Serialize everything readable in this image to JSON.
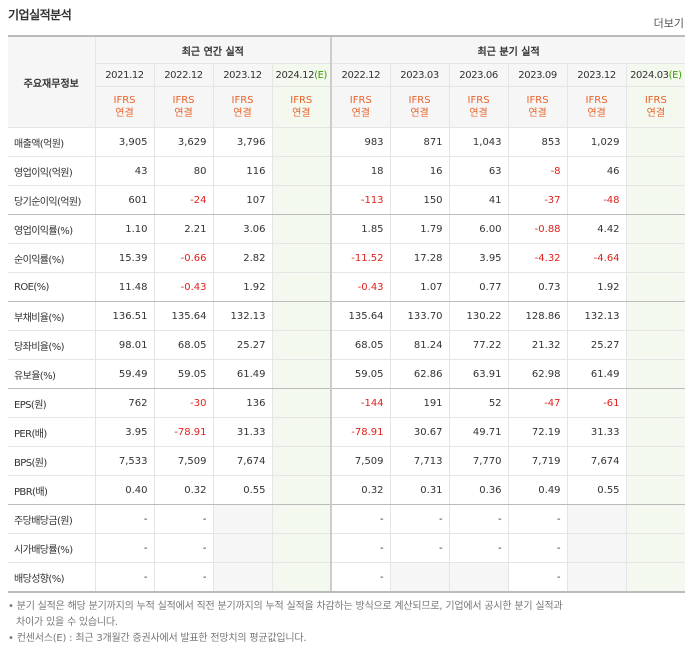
{
  "header": {
    "title": "기업실적분석",
    "more": "더보기"
  },
  "table": {
    "corner": "주요재무정보",
    "groups": [
      "최근 연간 실적",
      "최근 분기 실적"
    ],
    "periods": [
      {
        "date": "2021.12",
        "std": "IFRS",
        "basis": "연결"
      },
      {
        "date": "2022.12",
        "std": "IFRS",
        "basis": "연결"
      },
      {
        "date": "2023.12",
        "std": "IFRS",
        "basis": "연결"
      },
      {
        "date": "2024.12",
        "est": "(E)",
        "std": "IFRS",
        "basis": "연결"
      },
      {
        "date": "2022.12",
        "std": "IFRS",
        "basis": "연결"
      },
      {
        "date": "2023.03",
        "std": "IFRS",
        "basis": "연결"
      },
      {
        "date": "2023.06",
        "std": "IFRS",
        "basis": "연결"
      },
      {
        "date": "2023.09",
        "std": "IFRS",
        "basis": "연결"
      },
      {
        "date": "2023.12",
        "std": "IFRS",
        "basis": "연결"
      },
      {
        "date": "2024.03",
        "est": "(E)",
        "std": "IFRS",
        "basis": "연결"
      }
    ],
    "rows": [
      {
        "label": "매출액(억원)",
        "cells": [
          "3,905",
          "3,629",
          "3,796",
          null,
          "983",
          "871",
          "1,043",
          "853",
          "1,029",
          null
        ]
      },
      {
        "label": "영업이익(억원)",
        "cells": [
          "43",
          "80",
          "116",
          null,
          "18",
          "16",
          "63",
          "-8",
          "46",
          null
        ]
      },
      {
        "label": "당기순이익(억원)",
        "cells": [
          "601",
          "-24",
          "107",
          null,
          "-113",
          "150",
          "41",
          "-37",
          "-48",
          null
        ]
      },
      {
        "label": "영업이익률(%)",
        "cells": [
          "1.10",
          "2.21",
          "3.06",
          null,
          "1.85",
          "1.79",
          "6.00",
          "-0.88",
          "4.42",
          null
        ]
      },
      {
        "label": "순이익률(%)",
        "cells": [
          "15.39",
          "-0.66",
          "2.82",
          null,
          "-11.52",
          "17.28",
          "3.95",
          "-4.32",
          "-4.64",
          null
        ]
      },
      {
        "label": "ROE(%)",
        "cells": [
          "11.48",
          "-0.43",
          "1.92",
          null,
          "-0.43",
          "1.07",
          "0.77",
          "0.73",
          "1.92",
          null
        ]
      },
      {
        "label": "부채비율(%)",
        "cells": [
          "136.51",
          "135.64",
          "132.13",
          null,
          "135.64",
          "133.70",
          "130.22",
          "128.86",
          "132.13",
          null
        ]
      },
      {
        "label": "당좌비율(%)",
        "cells": [
          "98.01",
          "68.05",
          "25.27",
          null,
          "68.05",
          "81.24",
          "77.22",
          "21.32",
          "25.27",
          null
        ]
      },
      {
        "label": "유보율(%)",
        "cells": [
          "59.49",
          "59.05",
          "61.49",
          null,
          "59.05",
          "62.86",
          "63.91",
          "62.98",
          "61.49",
          null
        ]
      },
      {
        "label": "EPS(원)",
        "cells": [
          "762",
          "-30",
          "136",
          null,
          "-144",
          "191",
          "52",
          "-47",
          "-61",
          null
        ]
      },
      {
        "label": "PER(배)",
        "cells": [
          "3.95",
          "-78.91",
          "31.33",
          null,
          "-78.91",
          "30.67",
          "49.71",
          "72.19",
          "31.33",
          null
        ]
      },
      {
        "label": "BPS(원)",
        "cells": [
          "7,533",
          "7,509",
          "7,674",
          null,
          "7,509",
          "7,713",
          "7,770",
          "7,719",
          "7,674",
          null
        ]
      },
      {
        "label": "PBR(배)",
        "cells": [
          "0.40",
          "0.32",
          "0.55",
          null,
          "0.32",
          "0.31",
          "0.36",
          "0.49",
          "0.55",
          null
        ]
      },
      {
        "label": "주당배당금(원)",
        "cells": [
          "-",
          "-",
          null,
          null,
          "-",
          "-",
          "-",
          "-",
          null,
          null
        ]
      },
      {
        "label": "시가배당률(%)",
        "cells": [
          "-",
          "-",
          null,
          null,
          "-",
          "-",
          "-",
          "-",
          null,
          null
        ]
      },
      {
        "label": "배당성향(%)",
        "cells": [
          "-",
          "-",
          null,
          null,
          "-",
          null,
          null,
          "-",
          null,
          null
        ]
      }
    ]
  },
  "notes": [
    "분기 실적은 해당 분기까지의 누적 실적에서 직전 분기까지의 누적 실적을 차감하는 방식으로 계산되므로, 기업에서 공시한 분기 실적과 차이가 있을 수 있습니다.",
    "컨센서스(E) : 최근 3개월간 증권사에서 발표한 전망치의 평균값입니다."
  ]
}
